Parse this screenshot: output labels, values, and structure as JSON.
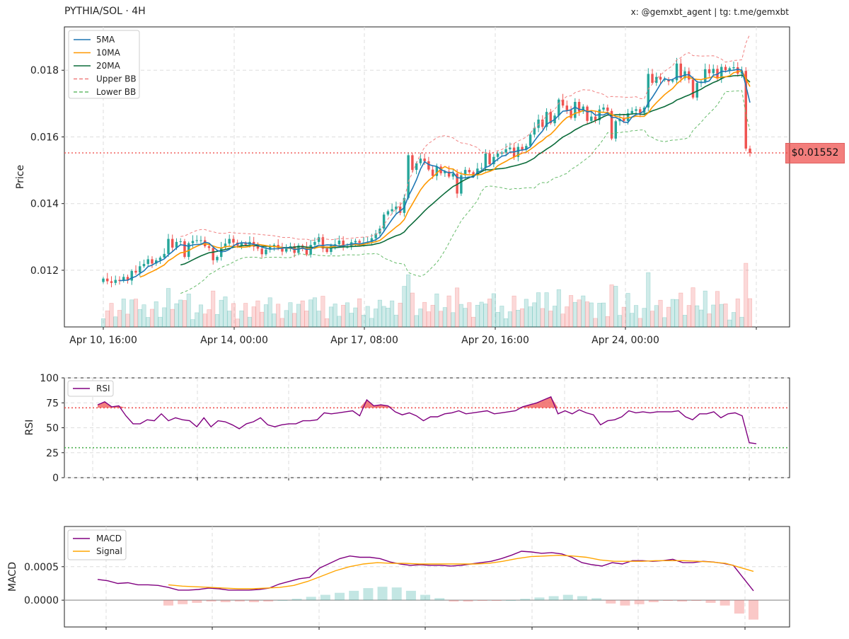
{
  "header": {
    "title": "PYTHIA/SOL · 4H",
    "credit": "x: @gemxbt_agent | tg: t.me/gemxbt"
  },
  "current_price_label": "$0.01552",
  "colors": {
    "up": "#26a69a",
    "down": "#ef5350",
    "ma5": "#1f77b4",
    "ma10": "#ff9800",
    "ma20": "#0b6b3a",
    "upper_bb": "#f08080",
    "lower_bb": "#66bb6a",
    "rsi": "#800080",
    "macd": "#800080",
    "signal": "#ffa500"
  },
  "chart_data": [
    {
      "type": "candlestick",
      "title": "PYTHIA/SOL · 4H",
      "ylabel": "Price",
      "ylim": [
        0.0103,
        0.0193
      ],
      "yticks": [
        0.012,
        0.014,
        0.016,
        0.018
      ],
      "ytick_labels": [
        "0.012",
        "0.014",
        "0.016",
        "0.018"
      ],
      "x_tick_labels": [
        "Apr 10, 16:00",
        "Apr 14, 00:00",
        "Apr 17, 08:00",
        "Apr 20, 16:00",
        "Apr 24, 00:00"
      ],
      "legend": [
        "5MA",
        "10MA",
        "20MA",
        "Upper BB",
        "Lower BB"
      ],
      "legend_position": "top-left",
      "grid": true,
      "current_price": 0.01552,
      "close": [
        0.01175,
        0.01167,
        0.01162,
        0.01171,
        0.01168,
        0.0118,
        0.01169,
        0.01198,
        0.01193,
        0.01212,
        0.01219,
        0.01233,
        0.0122,
        0.0123,
        0.01238,
        0.01249,
        0.01294,
        0.01268,
        0.01285,
        0.01287,
        0.0124,
        0.01281,
        0.01288,
        0.0129,
        0.0129,
        0.01272,
        0.01267,
        0.0123,
        0.0124,
        0.01268,
        0.0128,
        0.01294,
        0.01283,
        0.01274,
        0.01282,
        0.01277,
        0.01285,
        0.01271,
        0.01265,
        0.01248,
        0.01262,
        0.01271,
        0.01276,
        0.01267,
        0.01256,
        0.01265,
        0.01272,
        0.01252,
        0.01274,
        0.01268,
        0.01247,
        0.01276,
        0.01285,
        0.01299,
        0.01265,
        0.01255,
        0.01275,
        0.01278,
        0.01289,
        0.0127,
        0.0127,
        0.01284,
        0.01288,
        0.01282,
        0.01283,
        0.01285,
        0.01296,
        0.0131,
        0.01325,
        0.01367,
        0.01377,
        0.01383,
        0.01391,
        0.01372,
        0.01417,
        0.01545,
        0.01501,
        0.01521,
        0.01535,
        0.01527,
        0.01502,
        0.01483,
        0.01511,
        0.01491,
        0.01496,
        0.01481,
        0.0149,
        0.0143,
        0.01485,
        0.01501,
        0.01494,
        0.01486,
        0.01505,
        0.01507,
        0.0155,
        0.01518,
        0.0154,
        0.0155,
        0.01553,
        0.01563,
        0.01568,
        0.0154,
        0.0157,
        0.01562,
        0.01573,
        0.01607,
        0.01627,
        0.01652,
        0.0163,
        0.01675,
        0.01641,
        0.01664,
        0.01712,
        0.01694,
        0.0168,
        0.01657,
        0.01705,
        0.01676,
        0.01691,
        0.01648,
        0.01661,
        0.0165,
        0.01682,
        0.01688,
        0.01678,
        0.01595,
        0.01647,
        0.01654,
        0.01648,
        0.01671,
        0.01678,
        0.01683,
        0.01672,
        0.01688,
        0.01789,
        0.01762,
        0.0178,
        0.01772,
        0.01772,
        0.01766,
        0.0177,
        0.0182,
        0.01776,
        0.01797,
        0.01772,
        0.01718,
        0.01762,
        0.01766,
        0.01803,
        0.01791,
        0.01804,
        0.01775,
        0.0181,
        0.018,
        0.01806,
        0.01809,
        0.0179,
        0.01798,
        0.01565,
        0.01552
      ],
      "ohlc_note": "candles reconstructed from chart",
      "volume_overlay": true
    },
    {
      "type": "line",
      "ylabel": "RSI",
      "ylim": [
        0,
        100
      ],
      "yticks": [
        0,
        25,
        50,
        75,
        100
      ],
      "legend": [
        "RSI"
      ],
      "legend_position": "top-left",
      "overbought": 70,
      "oversold": 30,
      "series": [
        {
          "name": "RSI",
          "values": [
            73,
            76,
            71,
            72,
            62,
            54,
            54,
            58,
            57,
            64,
            57,
            60,
            58,
            57,
            51,
            60,
            51,
            57,
            56,
            53,
            49,
            54,
            56,
            60,
            53,
            51,
            53,
            54,
            54,
            57,
            57,
            58,
            65,
            64,
            65,
            66,
            67,
            62,
            78,
            72,
            73,
            72,
            66,
            63,
            65,
            62,
            57,
            61,
            61,
            64,
            65,
            67,
            64,
            65,
            66,
            67,
            64,
            65,
            66,
            67,
            71,
            73,
            75,
            78,
            81,
            64,
            67,
            64,
            68,
            65,
            63,
            53,
            57,
            58,
            61,
            67,
            65,
            66,
            65,
            66,
            66,
            66,
            67,
            61,
            58,
            64,
            64,
            66,
            60,
            64,
            65,
            62,
            35,
            34
          ]
        }
      ]
    },
    {
      "type": "line",
      "ylabel": "MACD",
      "ylim": [
        -0.0004,
        0.0011
      ],
      "yticks": [
        0.0,
        0.0005
      ],
      "ytick_labels": [
        "0.0000",
        "0.0005"
      ],
      "legend": [
        "MACD",
        "Signal"
      ],
      "legend_position": "top-left",
      "series": [
        {
          "name": "MACD",
          "values": [
            0.00031,
            0.00029,
            0.00025,
            0.00026,
            0.00023,
            0.00023,
            0.00022,
            0.00019,
            0.00015,
            0.00015,
            0.00016,
            0.00018,
            0.00017,
            0.00015,
            0.00015,
            0.00015,
            0.00016,
            0.00018,
            0.00024,
            0.00028,
            0.00032,
            0.00034,
            0.00048,
            0.00055,
            0.00062,
            0.00066,
            0.00064,
            0.00064,
            0.00062,
            0.00057,
            0.00054,
            0.00052,
            0.00053,
            0.00052,
            0.00052,
            0.00051,
            0.00052,
            0.00054,
            0.00056,
            0.00058,
            0.00062,
            0.00067,
            0.00073,
            0.00072,
            0.0007,
            0.00071,
            0.00069,
            0.00064,
            0.00056,
            0.00053,
            0.00051,
            0.00056,
            0.00054,
            0.00059,
            0.00059,
            0.00058,
            0.00059,
            0.00061,
            0.00056,
            0.00056,
            0.00058,
            0.00057,
            0.00055,
            0.00052,
            0.00033,
            0.00014
          ]
        },
        {
          "name": "Signal",
          "values": [
            0.00023,
            0.00021,
            0.0002,
            0.00019,
            0.00018,
            0.00017,
            0.00017,
            0.00018,
            0.00019,
            0.00022,
            0.00028,
            0.00036,
            0.00044,
            0.0005,
            0.00054,
            0.00056,
            0.00055,
            0.00055,
            0.00054,
            0.00054,
            0.00054,
            0.00054,
            0.00054,
            0.00055,
            0.00058,
            0.00062,
            0.00065,
            0.00066,
            0.00067,
            0.00066,
            0.00064,
            0.0006,
            0.00058,
            0.00058,
            0.00058,
            0.00059,
            0.00059,
            0.00059,
            0.00058,
            0.00057,
            0.00055,
            0.00049,
            0.00043
          ]
        },
        {
          "name": "Histogram",
          "values": [
            -8e-05,
            -6e-05,
            -4e-05,
            -2e-05,
            -3e-05,
            -2e-05,
            -3e-05,
            -2e-05,
            0.0,
            2e-05,
            5e-05,
            8e-05,
            0.00011,
            0.00014,
            0.00018,
            0.0002,
            0.00019,
            0.00014,
            8e-05,
            3e-05,
            -2e-05,
            -2e-05,
            -1e-05,
            -1e-05,
            0.0,
            2e-05,
            4e-05,
            6e-05,
            8e-05,
            6e-05,
            3e-05,
            -5e-05,
            -8e-05,
            -6e-05,
            -3e-05,
            -1e-05,
            -2e-05,
            -1e-05,
            -4e-05,
            -8e-05,
            -0.0002,
            -0.00029
          ]
        }
      ]
    }
  ]
}
